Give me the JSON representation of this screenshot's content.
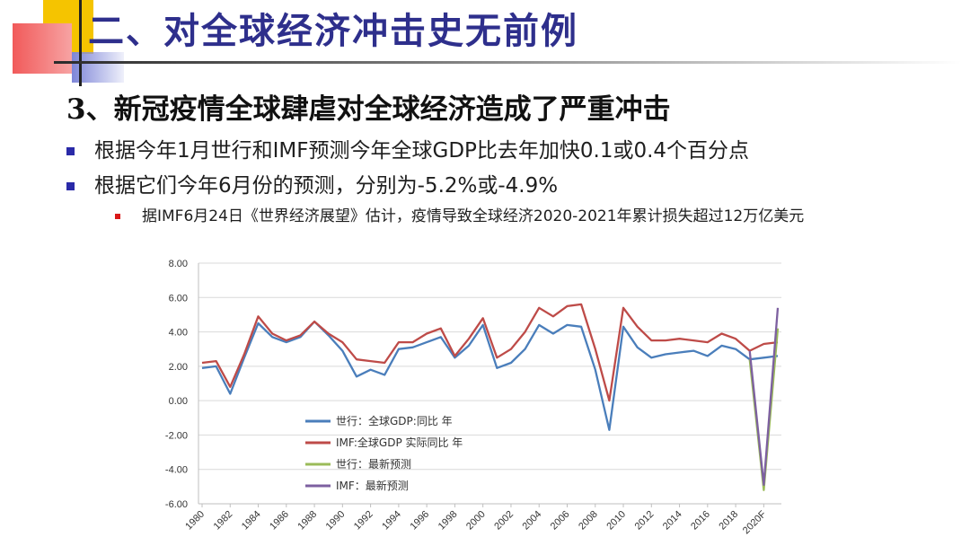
{
  "slide": {
    "title": "二、对全球经济冲击史无前例",
    "heading": "3、新冠疫情全球肆虐对全球经济造成了严重冲击",
    "bullets": [
      "根据今年1月世行和IMF预测今年全球GDP比去年加快0.1或0.4个百分点",
      "根据它们今年6月份的预测，分别为-5.2%或-4.9%"
    ],
    "sub_bullet": "据IMF6月24日《世界经济展望》估计，疫情导致全球经济2020-2021年累计损失超过12万亿美元"
  },
  "colors": {
    "title": "#2e2f8c",
    "bullet_square": "#2a2aa8",
    "sub_bullet_square": "#d91818"
  },
  "chart_data": {
    "type": "line",
    "x_categories": [
      "1980",
      "1981",
      "1982",
      "1983",
      "1984",
      "1985",
      "1986",
      "1987",
      "1988",
      "1989",
      "1990",
      "1991",
      "1992",
      "1993",
      "1994",
      "1995",
      "1996",
      "1997",
      "1998",
      "1999",
      "2000",
      "2001",
      "2002",
      "2003",
      "2004",
      "2005",
      "2006",
      "2007",
      "2008",
      "2009",
      "2010",
      "2011",
      "2012",
      "2013",
      "2014",
      "2015",
      "2016",
      "2017",
      "2018",
      "2019",
      "2020F",
      "2021F"
    ],
    "x_tick_labels": [
      "1980",
      "1982",
      "1984",
      "1986",
      "1988",
      "1990",
      "1992",
      "1994",
      "1996",
      "1998",
      "2000",
      "2002",
      "2004",
      "2006",
      "2008",
      "2010",
      "2012",
      "2014",
      "2016",
      "2018",
      "2020F"
    ],
    "ylim": [
      -6,
      8
    ],
    "y_ticks": [
      "-6.00",
      "-4.00",
      "-2.00",
      "0.00",
      "2.00",
      "4.00",
      "6.00",
      "8.00"
    ],
    "grid": "horizontal",
    "legend_position": "lower-left",
    "series": [
      {
        "name": "世行：全球GDP:同比 年",
        "color": "#4a7ebb",
        "start_index": 0,
        "values": [
          1.9,
          2.0,
          0.4,
          2.5,
          4.5,
          3.7,
          3.4,
          3.7,
          4.6,
          3.8,
          2.9,
          1.4,
          1.8,
          1.5,
          3.0,
          3.1,
          3.4,
          3.7,
          2.5,
          3.2,
          4.4,
          1.9,
          2.2,
          3.0,
          4.4,
          3.9,
          4.4,
          4.3,
          1.8,
          -1.7,
          4.3,
          3.1,
          2.5,
          2.7,
          2.8,
          2.9,
          2.6,
          3.2,
          3.0,
          2.4,
          2.5,
          2.6
        ]
      },
      {
        "name": "IMF:全球GDP 实际同比 年",
        "color": "#be4b48",
        "start_index": 0,
        "values": [
          2.2,
          2.3,
          0.8,
          2.7,
          4.9,
          3.9,
          3.5,
          3.8,
          4.6,
          3.9,
          3.4,
          2.4,
          2.3,
          2.2,
          3.4,
          3.4,
          3.9,
          4.2,
          2.6,
          3.6,
          4.8,
          2.5,
          3.0,
          4.0,
          5.4,
          4.9,
          5.5,
          5.6,
          3.0,
          0.0,
          5.4,
          4.3,
          3.5,
          3.5,
          3.6,
          3.5,
          3.4,
          3.9,
          3.6,
          2.9,
          3.3,
          3.4
        ]
      },
      {
        "name": "世行：最新预测",
        "color": "#9bbb59",
        "start_index": 39,
        "values": [
          2.4,
          -5.2,
          4.2
        ]
      },
      {
        "name": "IMF：最新预测",
        "color": "#7d60a0",
        "start_index": 39,
        "values": [
          2.9,
          -4.9,
          5.4
        ]
      }
    ]
  }
}
